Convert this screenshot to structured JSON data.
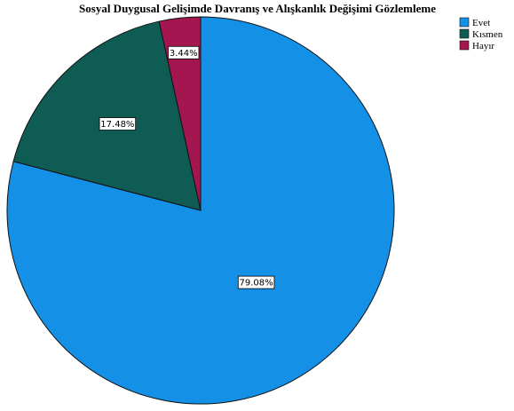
{
  "chart_data": {
    "type": "pie",
    "title": "Sosyal Duygusal Gelişimde Davranış ve Alışkanlık Değişimi Gözlemleme",
    "categories": [
      "Evet",
      "Kısmen",
      "Hayır"
    ],
    "values": [
      79.08,
      17.48,
      3.44
    ],
    "labels": [
      "79.08%",
      "17.48%",
      "3.44%"
    ],
    "colors": [
      "#1490e6",
      "#0f5c55",
      "#a3164f"
    ],
    "start_angle_deg": 0,
    "direction": "clockwise-from-top",
    "legend_position": "top-right"
  }
}
